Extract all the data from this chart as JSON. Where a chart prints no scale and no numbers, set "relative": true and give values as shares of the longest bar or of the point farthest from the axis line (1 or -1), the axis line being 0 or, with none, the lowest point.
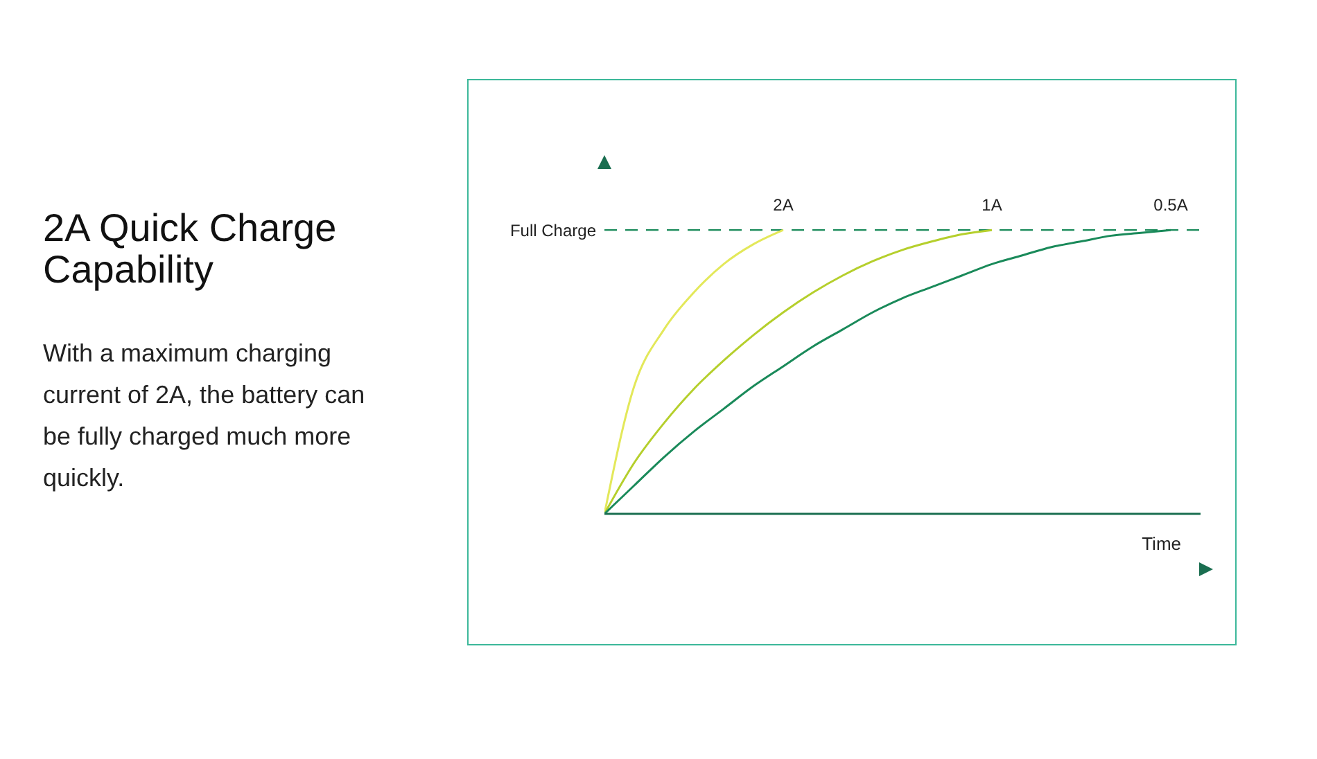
{
  "chart_data": {
    "type": "line",
    "title": "2A Quick Charge Capability",
    "annotations": [
      "With a maximum charging current of 2A, the battery can be fully charged much more quickly."
    ],
    "xlabel": "Time",
    "relative": true,
    "marker": "none",
    "line_style": "solid",
    "categories": [
      null,
      null,
      null,
      null,
      null,
      null,
      null,
      null,
      null,
      null,
      null,
      null,
      null,
      null,
      null,
      null,
      null,
      null,
      null,
      null
    ],
    "series": [
      {
        "name": "2A",
        "color": "#e3e85a",
        "values": [
          0,
          0.45,
          0.65,
          0.78,
          0.88,
          0.95,
          1,
          null,
          null,
          null,
          null,
          null,
          null,
          null,
          null,
          null,
          null,
          null,
          null,
          null
        ]
      },
      {
        "name": "1A",
        "color": "#b5cf2c",
        "values": [
          0,
          0.18,
          0.32,
          0.44,
          0.54,
          0.63,
          0.71,
          0.78,
          0.84,
          0.89,
          0.93,
          0.96,
          0.985,
          1,
          null,
          null,
          null,
          null,
          null,
          null
        ]
      },
      {
        "name": "0.5A",
        "color": "#1a8a5a",
        "values": [
          0,
          0.1,
          0.2,
          0.29,
          0.37,
          0.45,
          0.52,
          0.59,
          0.65,
          0.71,
          0.76,
          0.8,
          0.84,
          0.88,
          0.91,
          0.94,
          0.96,
          0.98,
          0.99,
          1
        ]
      }
    ],
    "ref_lines": [
      {
        "axis": "y",
        "value": 1,
        "label": "Full Charge",
        "color": "#1a8a5a",
        "line_style": "dashed"
      }
    ]
  }
}
